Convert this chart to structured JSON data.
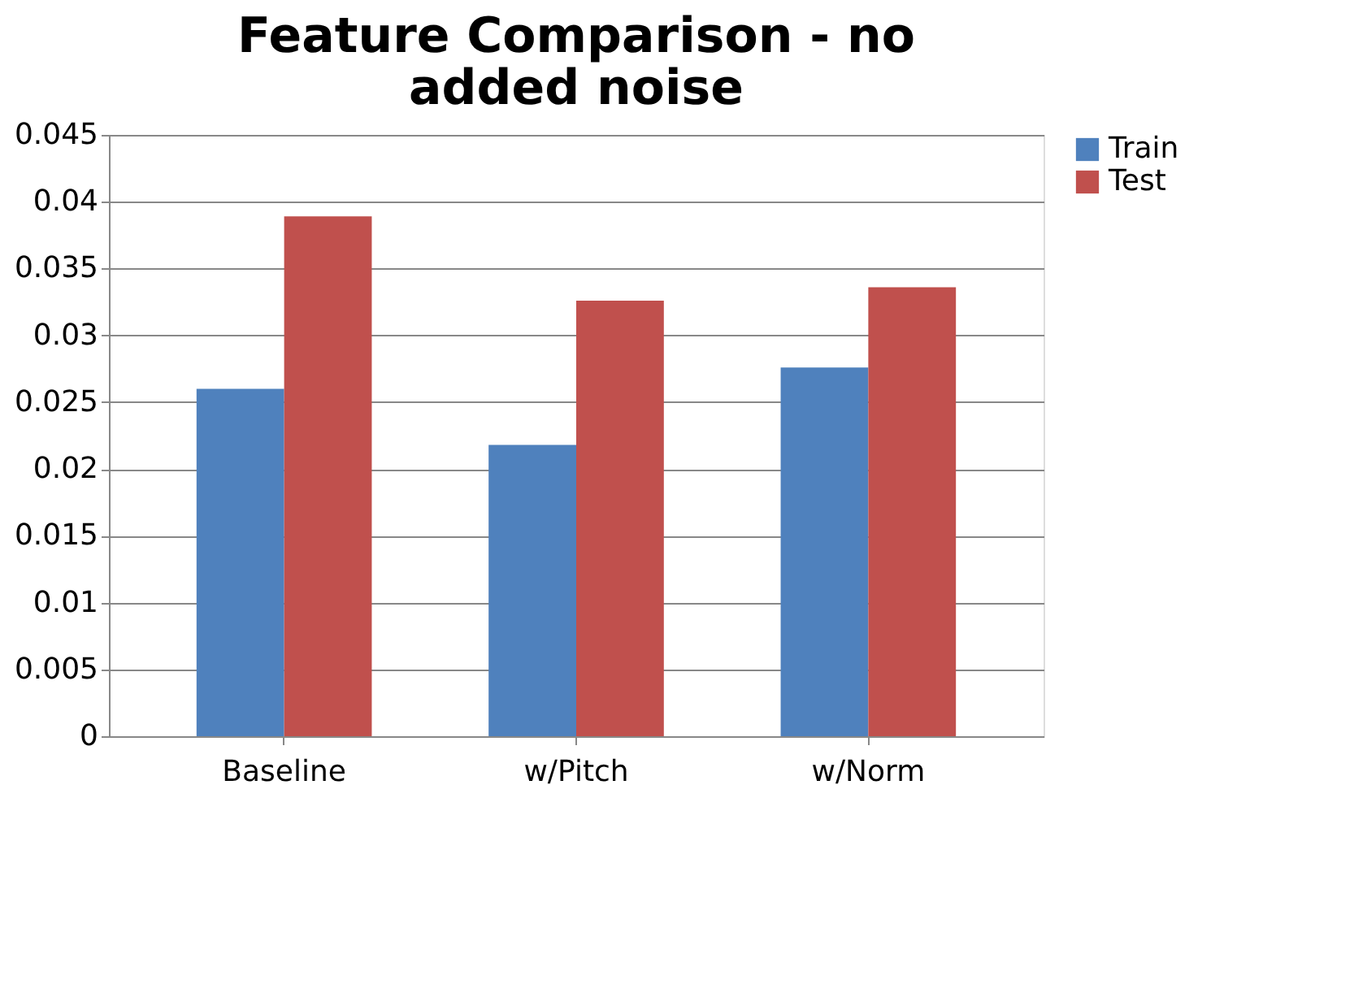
{
  "chart_data": {
    "type": "bar",
    "title": "Feature Comparison - no added noise",
    "categories": [
      "Baseline",
      "w/Pitch",
      "w/Norm"
    ],
    "series": [
      {
        "name": "Train",
        "color": "#4f81bd",
        "values": [
          0.026,
          0.0218,
          0.0276
        ]
      },
      {
        "name": "Test",
        "color": "#c0504d",
        "values": [
          0.0389,
          0.0326,
          0.0336
        ]
      }
    ],
    "ylim": [
      0,
      0.045
    ],
    "yticks": [
      0,
      0.005,
      0.01,
      0.015,
      0.02,
      0.025,
      0.03,
      0.035,
      0.04,
      0.045
    ],
    "grid": "y",
    "legend": "right"
  }
}
